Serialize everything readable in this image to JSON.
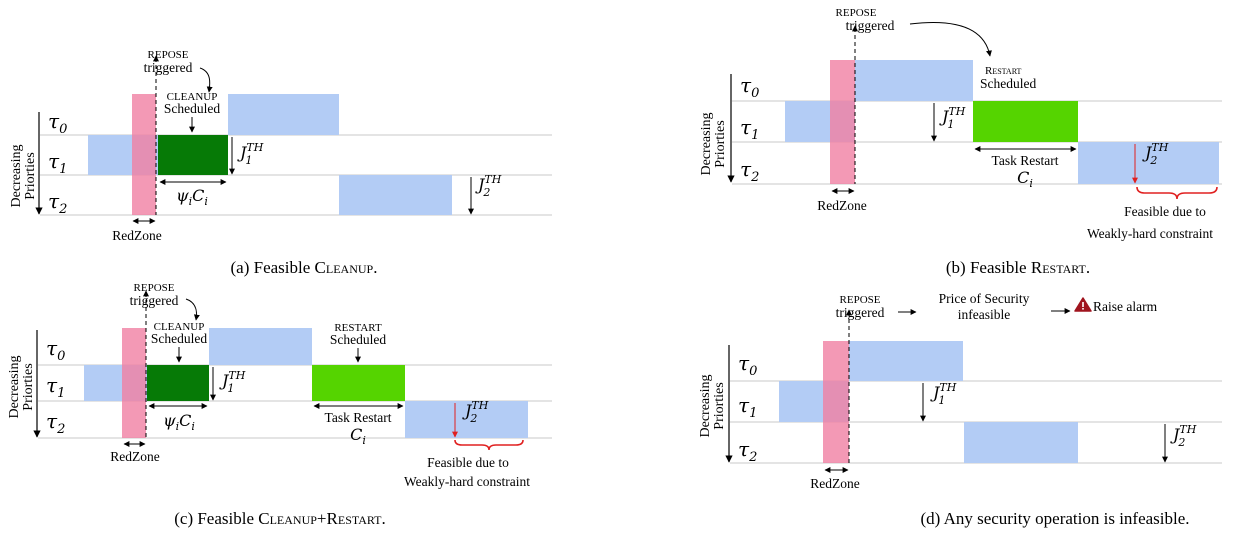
{
  "panels": [
    {
      "caption_prefix": "(a) Feasible ",
      "caption_sc": "Cleanup",
      "caption_suffix": ".",
      "trigger": "REPOSE",
      "trigger2": "triggered",
      "op1": "CLEANUP",
      "op1b": "Scheduled",
      "psi": "ψ",
      "psi_sub": "i",
      "ci": "C",
      "ci_sub": "i",
      "redzone": "RedZone"
    },
    {
      "caption_prefix": "(b) Feasible ",
      "caption_sc": "Restart",
      "caption_suffix": ".",
      "trigger": "REPOSE",
      "trigger2": "triggered",
      "op1": "Restart",
      "op1b": "Scheduled",
      "task_restart": "Task Restart",
      "ci": "C",
      "ci_sub": "i",
      "redzone": "RedZone",
      "feasible1": "Feasible due to",
      "feasible2": "Weakly-hard constraint"
    },
    {
      "caption_prefix": "(c) Feasible ",
      "caption_sc": "Cleanup+Restart",
      "caption_suffix": ".",
      "trigger": "REPOSE",
      "trigger2": "triggered",
      "op1": "CLEANUP",
      "op1b": "Scheduled",
      "op2": "RESTART",
      "op2b": "Scheduled",
      "task_restart": "Task Restart",
      "psi": "ψ",
      "psi_sub": "i",
      "ci": "C",
      "ci_sub": "i",
      "redzone": "RedZone",
      "feasible1": "Feasible due to",
      "feasible2": "Weakly-hard constraint"
    },
    {
      "caption": "(d) Any security operation is infeasible.",
      "trigger": "REPOSE",
      "trigger2": "triggered",
      "price1": "Price of Security",
      "price2": "infeasible",
      "alarm": "Raise alarm",
      "redzone": "RedZone"
    }
  ],
  "axis": {
    "dec1": "Decreasing",
    "dec2": "Priorties",
    "tau": "τ",
    "tau0": "0",
    "tau1": "1",
    "tau2": "2",
    "J": "J",
    "TH": "TH",
    "j1": "1",
    "j2": "2"
  },
  "colors": {
    "blue": "#b3ccf5",
    "pink": "#f07fa3",
    "darkgreen": "#067a06",
    "lightgreen": "#55d400",
    "red": "#e02020",
    "alarm": "#a0141e"
  }
}
